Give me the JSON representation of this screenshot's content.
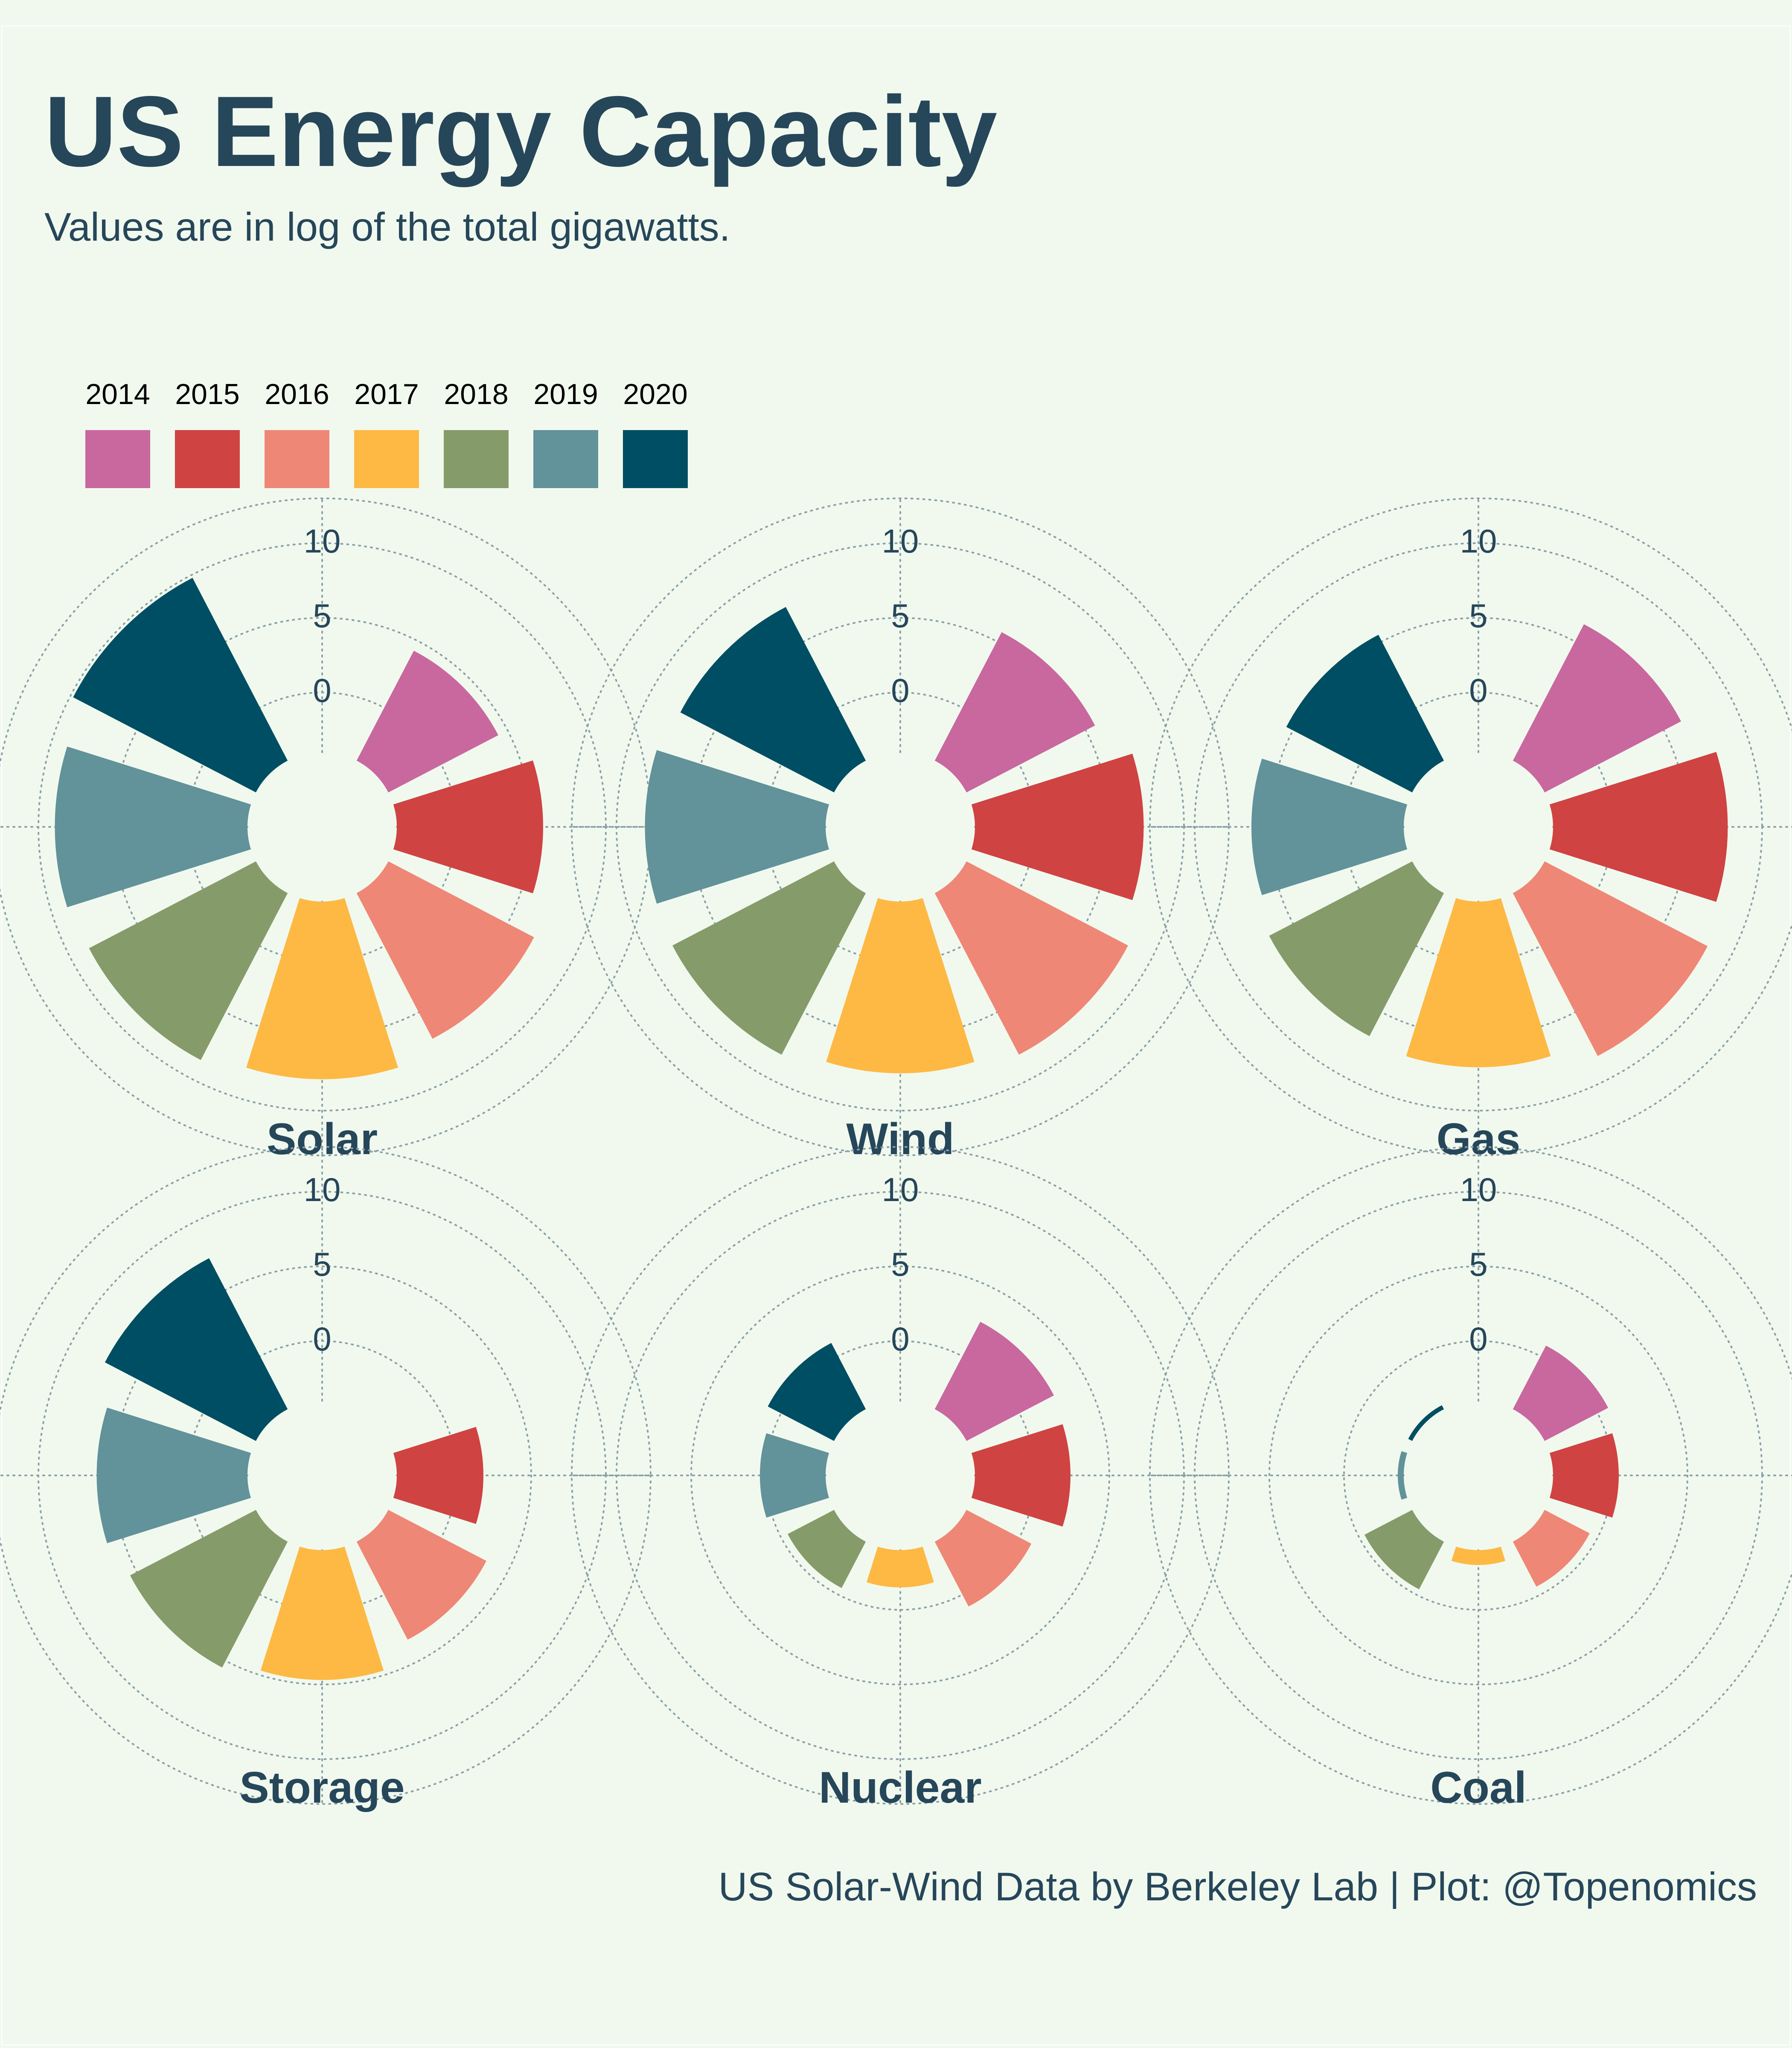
{
  "title": "US Energy Capacity",
  "subtitle": "Values are in log of the total gigawatts.",
  "caption": "US Solar-Wind Data by Berkeley Lab | Plot: @Topenomics",
  "legend": [
    {
      "label": "2014",
      "color": "#c8689f"
    },
    {
      "label": "2015",
      "color": "#cf4342"
    },
    {
      "label": "2016",
      "color": "#ef8776"
    },
    {
      "label": "2017",
      "color": "#fdb944"
    },
    {
      "label": "2018",
      "color": "#869b6a"
    },
    {
      "label": "2019",
      "color": "#62929a"
    },
    {
      "label": "2020",
      "color": "#004e63"
    }
  ],
  "colors": {
    "text": "#26465a",
    "background": "#f1f9ee",
    "grid": "#8aa0a8"
  },
  "chart_data": {
    "type": "bar",
    "polar": true,
    "radial_scale": "log",
    "radial_ticks": [
      0,
      5,
      10
    ],
    "radial_range": [
      -4,
      13
    ],
    "categories": [
      "2014",
      "2015",
      "2016",
      "2017",
      "2018",
      "2019",
      "2020"
    ],
    "panels": [
      {
        "name": "Solar",
        "values": [
          4.3,
          5.8,
          7.0,
          7.9,
          8.6,
          8.9,
          9.8
        ]
      },
      {
        "name": "Wind",
        "values": [
          5.7,
          7.3,
          8.2,
          7.5,
          8.2,
          8.1,
          7.6
        ]
      },
      {
        "name": "Gas",
        "values": [
          6.3,
          7.7,
          8.3,
          7.1,
          6.8,
          6.2,
          5.5
        ]
      },
      {
        "name": "Storage",
        "values": [
          -4.0,
          1.8,
          3.4,
          4.7,
          5.5,
          6.1,
          7.4
        ]
      },
      {
        "name": "Nuclear",
        "values": [
          2.6,
          2.4,
          0.9,
          -1.5,
          -0.5,
          0.4,
          1.0
        ]
      },
      {
        "name": "Coal",
        "values": [
          0.8,
          0.4,
          -0.6,
          -3.0,
          -0.4,
          -3.6,
          -3.7
        ]
      }
    ]
  }
}
